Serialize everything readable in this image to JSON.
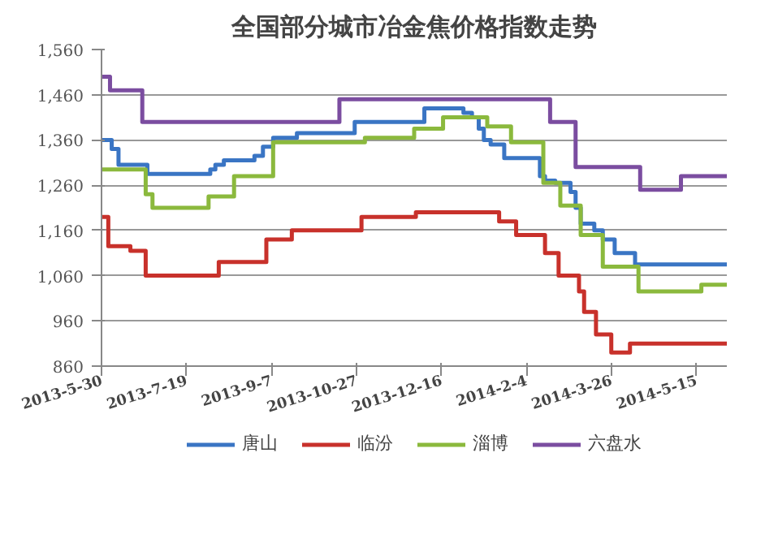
{
  "chart_data": {
    "type": "step",
    "title": "全国部分城市冶金焦价格指数走势",
    "xlim": [
      "2013-05-30",
      "2014-06-02"
    ],
    "xticks": [
      {
        "value": "2013-05-30",
        "label": "2013-5-30"
      },
      {
        "value": "2013-07-19",
        "label": "2013-7-19"
      },
      {
        "value": "2013-09-07",
        "label": "2013-9-7"
      },
      {
        "value": "2013-10-27",
        "label": "2013-10-27"
      },
      {
        "value": "2013-12-16",
        "label": "2013-12-16"
      },
      {
        "value": "2014-02-04",
        "label": "2014-2-4"
      },
      {
        "value": "2014-03-26",
        "label": "2014-3-26"
      },
      {
        "value": "2014-05-15",
        "label": "2014-5-15"
      }
    ],
    "ylim": [
      860,
      1560
    ],
    "yticks": [
      860,
      960,
      {
        "value": 1060,
        "label": "1,060"
      },
      {
        "value": 1160,
        "label": "1,160"
      },
      {
        "value": 1260,
        "label": "1,260"
      },
      {
        "value": 1360,
        "label": "1,360"
      },
      {
        "value": 1460,
        "label": "1,460"
      },
      {
        "value": 1560,
        "label": "1,560"
      }
    ],
    "grid": "y",
    "legend": "bottom",
    "series": [
      {
        "name": "唐山",
        "color": "#3a75c4",
        "x": [
          "2013-05-30",
          "2013-06-05",
          "2013-06-09",
          "2013-06-26",
          "2013-08-02",
          "2013-08-05",
          "2013-08-10",
          "2013-08-28",
          "2013-09-02",
          "2013-09-08",
          "2013-09-22",
          "2013-10-26",
          "2013-12-06",
          "2013-12-29",
          "2014-01-03",
          "2014-01-07",
          "2014-01-10",
          "2014-01-14",
          "2014-01-22",
          "2014-02-12",
          "2014-02-15",
          "2014-02-21",
          "2014-03-02",
          "2014-03-05",
          "2014-03-08",
          "2014-03-16",
          "2014-03-21",
          "2014-03-28",
          "2014-04-09",
          "2014-06-02"
        ],
        "values": [
          1360,
          1340,
          1305,
          1285,
          1295,
          1305,
          1315,
          1325,
          1345,
          1365,
          1375,
          1400,
          1430,
          1420,
          1410,
          1385,
          1360,
          1350,
          1320,
          1280,
          1270,
          1265,
          1245,
          1210,
          1175,
          1160,
          1140,
          1110,
          1085,
          1085
        ]
      },
      {
        "name": "临汾",
        "color": "#c8312b",
        "x": [
          "2013-05-30",
          "2013-06-03",
          "2013-06-16",
          "2013-06-25",
          "2013-08-07",
          "2013-09-04",
          "2013-09-19",
          "2013-10-30",
          "2013-12-01",
          "2014-01-19",
          "2014-01-29",
          "2014-02-15",
          "2014-02-23",
          "2014-03-07",
          "2014-03-10",
          "2014-03-17",
          "2014-03-26",
          "2014-04-06",
          "2014-06-02"
        ],
        "values": [
          1190,
          1125,
          1115,
          1060,
          1090,
          1140,
          1160,
          1190,
          1200,
          1180,
          1150,
          1110,
          1060,
          1025,
          980,
          930,
          890,
          910,
          910
        ]
      },
      {
        "name": "淄博",
        "color": "#8bb93d",
        "x": [
          "2013-05-30",
          "2013-06-25",
          "2013-06-29",
          "2013-08-01",
          "2013-08-16",
          "2013-09-08",
          "2013-11-01",
          "2013-11-30",
          "2013-12-17",
          "2014-01-12",
          "2014-01-26",
          "2014-02-14",
          "2014-02-24",
          "2014-03-08",
          "2014-03-21",
          "2014-04-11",
          "2014-05-18",
          "2014-06-02"
        ],
        "values": [
          1295,
          1240,
          1210,
          1235,
          1280,
          1355,
          1365,
          1385,
          1410,
          1390,
          1355,
          1265,
          1215,
          1150,
          1080,
          1025,
          1040,
          1040
        ]
      },
      {
        "name": "六盘水",
        "color": "#7b4da0",
        "x": [
          "2013-05-30",
          "2013-06-04",
          "2013-06-23",
          "2013-10-17",
          "2014-02-18",
          "2014-03-05",
          "2014-04-12",
          "2014-05-06",
          "2014-06-02"
        ],
        "values": [
          1500,
          1470,
          1400,
          1450,
          1400,
          1300,
          1250,
          1280,
          1280
        ]
      }
    ]
  }
}
